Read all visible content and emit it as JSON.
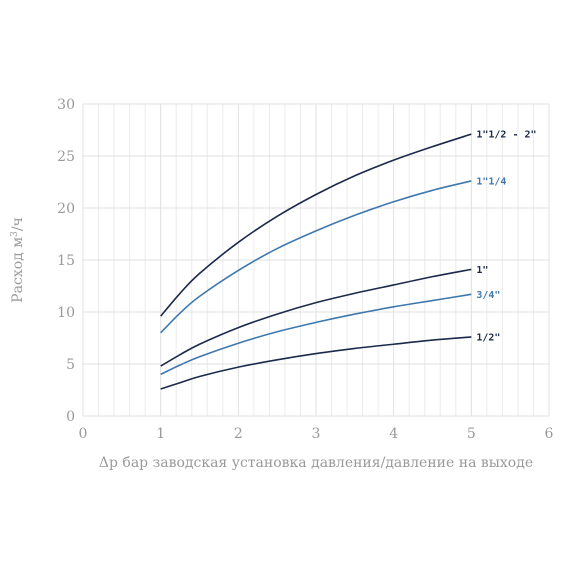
{
  "chart_data": {
    "type": "line",
    "title": "",
    "xlabel": "Δp бар заводская установка давления/давление на выходе",
    "ylabel_main": "Расход м",
    "ylabel_sup": "3",
    "ylabel_tail": "/ч",
    "xlim": [
      0,
      6
    ],
    "ylim": [
      0,
      30
    ],
    "x_ticks": [
      "0",
      "1",
      "2",
      "3",
      "4",
      "5",
      "6"
    ],
    "y_ticks": [
      "0",
      "5",
      "10",
      "15",
      "20",
      "25",
      "30"
    ],
    "grid": true,
    "legend": "inline-right",
    "series": [
      {
        "name": "1\"1/2 - 2\"",
        "color": "#1b2a4a",
        "points": [
          [
            1,
            9.6
          ],
          [
            1.25,
            11.8
          ],
          [
            1.5,
            13.7
          ],
          [
            2,
            16.7
          ],
          [
            2.5,
            19.2
          ],
          [
            3,
            21.3
          ],
          [
            3.5,
            23.1
          ],
          [
            4,
            24.6
          ],
          [
            4.5,
            25.9
          ],
          [
            5,
            27.1
          ]
        ]
      },
      {
        "name": "1\"1/4",
        "color": "#3f78ad",
        "points": [
          [
            1,
            8.0
          ],
          [
            1.25,
            9.9
          ],
          [
            1.5,
            11.5
          ],
          [
            2,
            14.0
          ],
          [
            2.5,
            16.1
          ],
          [
            3,
            17.8
          ],
          [
            3.5,
            19.3
          ],
          [
            4,
            20.6
          ],
          [
            4.5,
            21.7
          ],
          [
            5,
            22.6
          ]
        ]
      },
      {
        "name": "1\"",
        "color": "#1b2a4a",
        "points": [
          [
            1,
            4.8
          ],
          [
            1.25,
            5.9
          ],
          [
            1.5,
            6.9
          ],
          [
            2,
            8.5
          ],
          [
            2.5,
            9.8
          ],
          [
            3,
            10.9
          ],
          [
            3.5,
            11.8
          ],
          [
            4,
            12.6
          ],
          [
            4.5,
            13.4
          ],
          [
            5,
            14.1
          ]
        ]
      },
      {
        "name": "3/4\"",
        "color": "#3f78ad",
        "points": [
          [
            1,
            4.0
          ],
          [
            1.25,
            4.9
          ],
          [
            1.5,
            5.7
          ],
          [
            2,
            7.0
          ],
          [
            2.5,
            8.1
          ],
          [
            3,
            9.0
          ],
          [
            3.5,
            9.8
          ],
          [
            4,
            10.5
          ],
          [
            4.5,
            11.1
          ],
          [
            5,
            11.7
          ]
        ]
      },
      {
        "name": "1/2\"",
        "color": "#1b2a4a",
        "points": [
          [
            1,
            2.6
          ],
          [
            1.25,
            3.2
          ],
          [
            1.5,
            3.8
          ],
          [
            2,
            4.7
          ],
          [
            2.5,
            5.4
          ],
          [
            3,
            6.0
          ],
          [
            3.5,
            6.5
          ],
          [
            4,
            6.9
          ],
          [
            4.5,
            7.3
          ],
          [
            5,
            7.6
          ]
        ]
      }
    ]
  }
}
